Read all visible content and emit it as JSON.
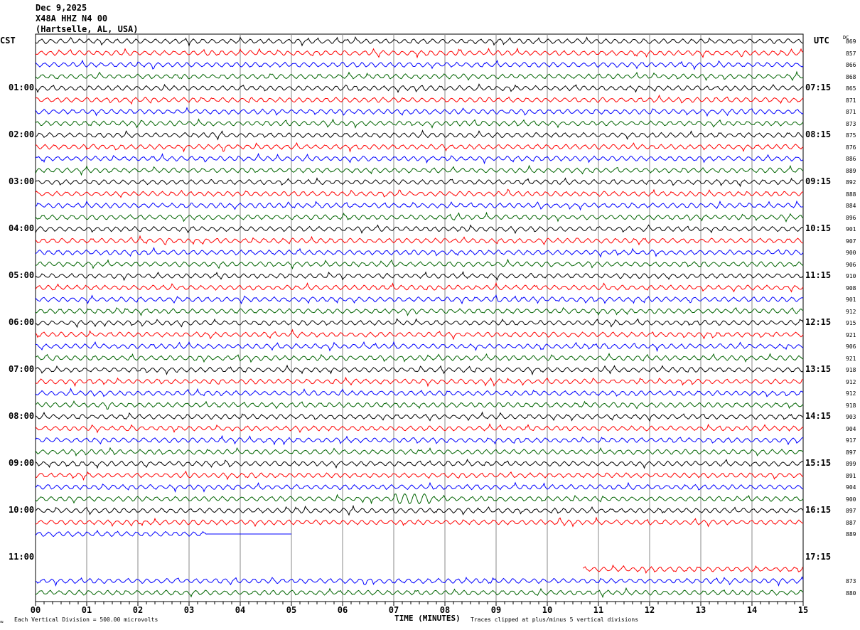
{
  "header": {
    "date": "Dec 9,2025",
    "station": "X48A HHZ N4 00",
    "location": "(Hartselle, AL, USA)"
  },
  "left_tz": "CST",
  "right_tz": "UTC",
  "dc_header": "DC",
  "left_labels": [
    "01:00",
    "02:00",
    "03:00",
    "04:00",
    "05:00",
    "06:00",
    "07:00",
    "08:00",
    "09:00",
    "10:00",
    "11:00"
  ],
  "right_labels": [
    "07:15",
    "08:15",
    "09:15",
    "10:15",
    "11:15",
    "12:15",
    "13:15",
    "14:15",
    "15:15",
    "16:15",
    "17:15"
  ],
  "footer": {
    "scale": "Each Vertical Division =  500.00 microvolts",
    "xlabel": "TIME (MINUTES)",
    "clip_note": "Traces clipped at plus/minus 5 vertical divisions"
  },
  "chart_data": {
    "type": "line",
    "title": "X48A HHZ N4 00 helicorder",
    "xlabel": "TIME (MINUTES)",
    "x_ticks": [
      "00",
      "01",
      "02",
      "03",
      "04",
      "05",
      "06",
      "07",
      "08",
      "09",
      "10",
      "11",
      "12",
      "13",
      "14",
      "15"
    ],
    "xlim": [
      0,
      15
    ],
    "trace_colors": [
      "#000000",
      "#ff0000",
      "#0000ff",
      "#006400"
    ],
    "rows": 48,
    "row_minutes": 15,
    "dc_values": [
      "869",
      "857",
      "866",
      "868",
      "865",
      "871",
      "871",
      "873",
      "875",
      "876",
      "886",
      "889",
      "892",
      "888",
      "884",
      "896",
      "901",
      "907",
      "900",
      "906",
      "910",
      "908",
      "901",
      "912",
      "915",
      "921",
      "906",
      "921",
      "918",
      "912",
      "912",
      "918",
      "903",
      "904",
      "917",
      "897",
      "899",
      "891",
      "904",
      "900",
      "897",
      "887",
      "889",
      "",
      "",
      "",
      "873",
      "880"
    ],
    "row_extents": {
      "42": [
        0,
        5
      ],
      "43": null,
      "44": null,
      "45": [
        10.7,
        15
      ]
    },
    "flat_after": {
      "42": 3.35
    },
    "event": {
      "row": 39,
      "start_min": 7.0,
      "end_min": 7.7
    }
  }
}
